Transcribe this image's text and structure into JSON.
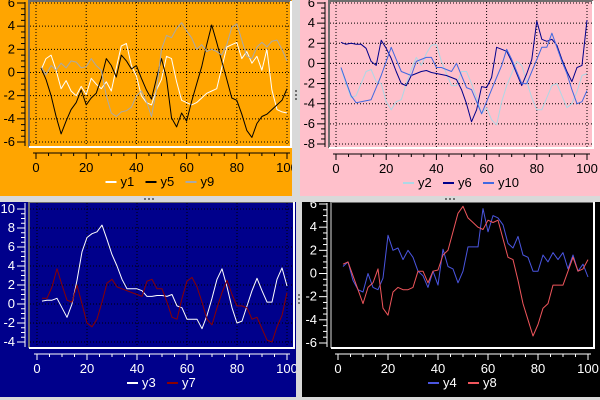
{
  "frame": {
    "background": "#D9D9D9",
    "grip_color": "#707070"
  },
  "chart_data": [
    {
      "type": "line",
      "panel": "top-left",
      "background": "#FFA500",
      "text_color": "#000000",
      "grid": true,
      "grid_color": "#000000",
      "border_dark": "#6E6E6E",
      "border_light": "#FFFFFF",
      "xlim": [
        0,
        100
      ],
      "ylim": [
        -6,
        6
      ],
      "x_ticks": [
        0,
        20,
        40,
        60,
        80,
        100
      ],
      "x_minor_step": 5,
      "y_ticks": [
        6,
        4,
        2,
        0,
        -2,
        -4,
        -6
      ],
      "y_minor_step": 0.5,
      "legend_position": "bottom",
      "x_start": 2,
      "x_step": 2,
      "series": [
        {
          "name": "y1",
          "color": "#FFFFFF",
          "values": [
            0.2,
            1.2,
            1.5,
            0.2,
            -1.4,
            -0.7,
            -1.6,
            -2.0,
            -1.2,
            -1.9,
            -0.5,
            -1.0,
            -1.4,
            -0.8,
            -1.6,
            0.4,
            2.3,
            2.5,
            0.6,
            -0.3,
            -2.0,
            -2.6,
            -2.8,
            -1.5,
            -0.6,
            1.4,
            1.2,
            -0.8,
            -2.4,
            -2.6,
            -2.8,
            -2.6,
            -2.2,
            -1.8,
            -1.6,
            -1.4,
            0.4,
            2.2,
            2.4,
            2.6,
            1.2,
            1.8,
            0.8,
            1.4,
            0.2,
            2.0,
            -1.5,
            -3.2,
            -3.4,
            -3.5
          ]
        },
        {
          "name": "y5",
          "color": "#000000",
          "values": [
            0.4,
            -0.6,
            -2.0,
            -3.8,
            -5.3,
            -4.2,
            -3.2,
            -2.6,
            -1.5,
            -2.8,
            -2.2,
            -1.8,
            -0.5,
            1.2,
            0.6,
            -0.4,
            1.5,
            1.0,
            0.3,
            0.6,
            -0.5,
            -1.5,
            -2.3,
            -0.5,
            1.2,
            -0.5,
            -3.9,
            -4.7,
            -3.5,
            -4.2,
            -2.5,
            -1.0,
            0.5,
            2.4,
            4.1,
            2.6,
            1.0,
            -0.6,
            -2.2,
            -2.4,
            -3.6,
            -5.0,
            -5.6,
            -4.4,
            -3.8,
            -3.6,
            -3.2,
            -2.8,
            -2.4,
            -1.4
          ]
        },
        {
          "name": "y9",
          "color": "#A9A9A9",
          "values": [
            0.5,
            -0.2,
            0.6,
            0.2,
            0.8,
            0.4,
            1.0,
            0.9,
            0.4,
            0.5,
            1.2,
            0.6,
            0.2,
            -2.0,
            -3.5,
            -3.8,
            -3.4,
            -3.3,
            -3.0,
            -2.0,
            -1.6,
            -2.5,
            -3.8,
            -1.5,
            2.0,
            3.2,
            3.0,
            3.8,
            4.3,
            3.6,
            3.0,
            2.0,
            2.4,
            1.8,
            2.0,
            1.8,
            1.5,
            2.4,
            3.9,
            4.2,
            2.8,
            1.4,
            1.2,
            2.2,
            2.6,
            2.2,
            2.7,
            2.8,
            2.0,
            1.0
          ]
        }
      ]
    },
    {
      "type": "line",
      "panel": "top-right",
      "background": "#FFC0CB",
      "text_color": "#000000",
      "grid": true,
      "grid_color": "#000000",
      "border_dark": "#6E6E6E",
      "border_light": "#FFFFFF",
      "xlim": [
        0,
        100
      ],
      "ylim": [
        -8,
        6
      ],
      "x_ticks": [
        0,
        20,
        40,
        60,
        80,
        100
      ],
      "x_minor_step": 5,
      "y_ticks": [
        6,
        4,
        2,
        0,
        -2,
        -4,
        -6,
        -8
      ],
      "y_minor_step": 0.5,
      "legend_position": "bottom",
      "x_start": 2,
      "x_step": 2,
      "series": [
        {
          "name": "y2",
          "color": "#ADD8E6",
          "values": [
            -0.5,
            -2.0,
            -3.4,
            -3.2,
            -2.0,
            -0.8,
            -0.6,
            -1.8,
            -2.0,
            -3.8,
            -4.6,
            -3.8,
            -3.6,
            -2.0,
            -0.6,
            0.6,
            -0.2,
            1.0,
            1.8,
            1.9,
            0.2,
            -1.0,
            -2.2,
            -2.2,
            -0.8,
            -0.8,
            -2.0,
            -3.4,
            -5.0,
            -4.4,
            -5.6,
            -6.1,
            -3.8,
            -2.2,
            -1.0,
            0.2,
            -0.2,
            -1.8,
            -3.4,
            -4.6,
            -4.6,
            -3.4,
            -2.2,
            -2.0,
            -3.2,
            -4.4,
            -4.0,
            -2.8,
            -1.2,
            -1.0
          ]
        },
        {
          "name": "y6",
          "color": "#00008B",
          "values": [
            2.1,
            1.9,
            2.0,
            1.9,
            1.9,
            1.5,
            0.2,
            -0.2,
            2.3,
            1.5,
            0.5,
            -0.8,
            -2.0,
            -2.2,
            -1.2,
            -1.0,
            -0.8,
            -0.7,
            -0.9,
            -1.0,
            -1.1,
            -1.2,
            -1.4,
            -1.6,
            -2.6,
            -4.0,
            -5.8,
            -4.6,
            -2.3,
            -2.4,
            -1.4,
            1.6,
            1.4,
            1.2,
            0.2,
            -1.0,
            -2.2,
            -1.0,
            0.4,
            4.2,
            2.4,
            2.2,
            2.4,
            1.8,
            0.4,
            -0.8,
            -1.8,
            -0.4,
            -0.2,
            4.3
          ]
        },
        {
          "name": "y10",
          "color": "#4169E1",
          "values": [
            -0.4,
            -1.8,
            -3.2,
            -3.9,
            -3.8,
            -3.7,
            -3.6,
            -2.4,
            -1.2,
            0.2,
            1.6,
            0.4,
            -0.8,
            -1.0,
            -1.2,
            0.2,
            0.4,
            0.6,
            0.6,
            -0.4,
            -0.4,
            -0.6,
            -0.8,
            0.0,
            -1.2,
            -2.4,
            -2.6,
            -3.8,
            -5.0,
            -3.8,
            -2.6,
            -1.4,
            -0.2,
            1.4,
            0.4,
            -0.8,
            -2.0,
            -2.0,
            -0.8,
            0.4,
            1.6,
            1.6,
            3.0,
            1.6,
            0.2,
            -1.0,
            -2.6,
            -4.0,
            -3.8,
            -2.7
          ]
        }
      ]
    },
    {
      "type": "line",
      "panel": "bottom-left",
      "background": "#00008B",
      "text_color": "#FFFFFF",
      "grid": true,
      "grid_color": "#000000",
      "border_dark": "#6E6E6E",
      "border_light": "#FFFFFF",
      "xlim": [
        0,
        100
      ],
      "ylim": [
        -4,
        10
      ],
      "x_ticks": [
        0,
        20,
        40,
        60,
        80,
        100
      ],
      "x_minor_step": 5,
      "y_ticks": [
        10,
        8,
        6,
        4,
        2,
        0,
        -2,
        -4
      ],
      "y_minor_step": 0.5,
      "legend_position": "bottom",
      "x_start": 2,
      "x_step": 2,
      "series": [
        {
          "name": "y3",
          "color": "#FFFFFF",
          "values": [
            0.3,
            0.4,
            0.4,
            0.6,
            -0.4,
            -1.4,
            0.0,
            2.5,
            5.5,
            7.0,
            7.4,
            7.6,
            8.3,
            6.8,
            5.2,
            4.0,
            2.6,
            1.6,
            1.6,
            1.6,
            1.4,
            0.8,
            0.8,
            0.9,
            0.9,
            0.8,
            1.0,
            -0.2,
            -0.4,
            -1.6,
            -1.6,
            -1.6,
            -2.6,
            -1.2,
            0.6,
            2.6,
            3.7,
            1.8,
            -0.4,
            -2.0,
            -1.8,
            -0.2,
            1.4,
            2.7,
            1.4,
            0.2,
            0.2,
            2.6,
            3.8,
            1.9
          ]
        },
        {
          "name": "y7",
          "color": "#8B0000",
          "values": [
            0.6,
            0.6,
            1.8,
            3.7,
            2.0,
            0.4,
            0.2,
            2.0,
            0.0,
            -2.0,
            -2.4,
            -1.6,
            0.2,
            2.2,
            2.6,
            1.8,
            1.6,
            1.4,
            1.2,
            1.0,
            0.8,
            2.4,
            2.6,
            1.6,
            1.6,
            0.2,
            -1.4,
            -1.6,
            0.6,
            2.4,
            2.8,
            1.8,
            0.2,
            -1.6,
            -2.2,
            -0.4,
            1.2,
            2.5,
            1.0,
            -0.2,
            -0.2,
            -0.4,
            -1.6,
            -1.4,
            -2.6,
            -3.8,
            -4.0,
            -2.4,
            -1.2,
            1.2
          ]
        }
      ]
    },
    {
      "type": "line",
      "panel": "bottom-right",
      "background": "#000000",
      "text_color": "#FFFFFF",
      "grid": false,
      "grid_color": "#000000",
      "border_dark": "#6E6E6E",
      "border_light": "#FFFFFF",
      "xlim": [
        0,
        100
      ],
      "ylim": [
        -6,
        6
      ],
      "x_ticks": [
        0,
        20,
        40,
        60,
        80,
        100
      ],
      "x_minor_step": 5,
      "y_ticks": [
        6,
        4,
        2,
        0,
        -2,
        -4,
        -6
      ],
      "y_minor_step": 0.5,
      "legend_position": "bottom",
      "x_start": 2,
      "x_step": 2,
      "series": [
        {
          "name": "y4",
          "color": "#4A55E0",
          "values": [
            0.6,
            1.0,
            -0.6,
            -1.4,
            -1.6,
            0.0,
            -1.2,
            -1.4,
            -0.4,
            3.3,
            2.0,
            2.2,
            1.2,
            2.0,
            1.4,
            0.2,
            -0.2,
            -1.2,
            0.2,
            -1.0,
            2.1,
            0.6,
            0.4,
            -0.8,
            0.2,
            2.3,
            2.3,
            2.3,
            5.6,
            3.6,
            5.0,
            4.8,
            4.2,
            2.6,
            2.2,
            3.2,
            1.6,
            1.4,
            0.2,
            0.2,
            1.6,
            1.0,
            1.8,
            1.2,
            1.8,
            0.4,
            1.6,
            0.2,
            0.8,
            -0.3
          ]
        },
        {
          "name": "y8",
          "color": "#F0565C",
          "values": [
            0.8,
            1.0,
            -0.2,
            -1.4,
            -2.6,
            -1.2,
            -0.8,
            0.4,
            -3.0,
            -3.6,
            -1.6,
            -1.2,
            -1.4,
            -1.4,
            -1.2,
            0.2,
            0.2,
            -0.8,
            0.2,
            0.3,
            1.6,
            2.0,
            3.6,
            5.2,
            5.8,
            4.8,
            4.4,
            4.0,
            3.8,
            4.6,
            4.4,
            4.6,
            3.0,
            1.4,
            1.2,
            -0.6,
            -2.6,
            -4.0,
            -5.4,
            -4.4,
            -3.0,
            -2.6,
            -1.0,
            -1.0,
            -1.0,
            0.2,
            1.4,
            0.2,
            0.4,
            1.2
          ]
        }
      ]
    }
  ]
}
